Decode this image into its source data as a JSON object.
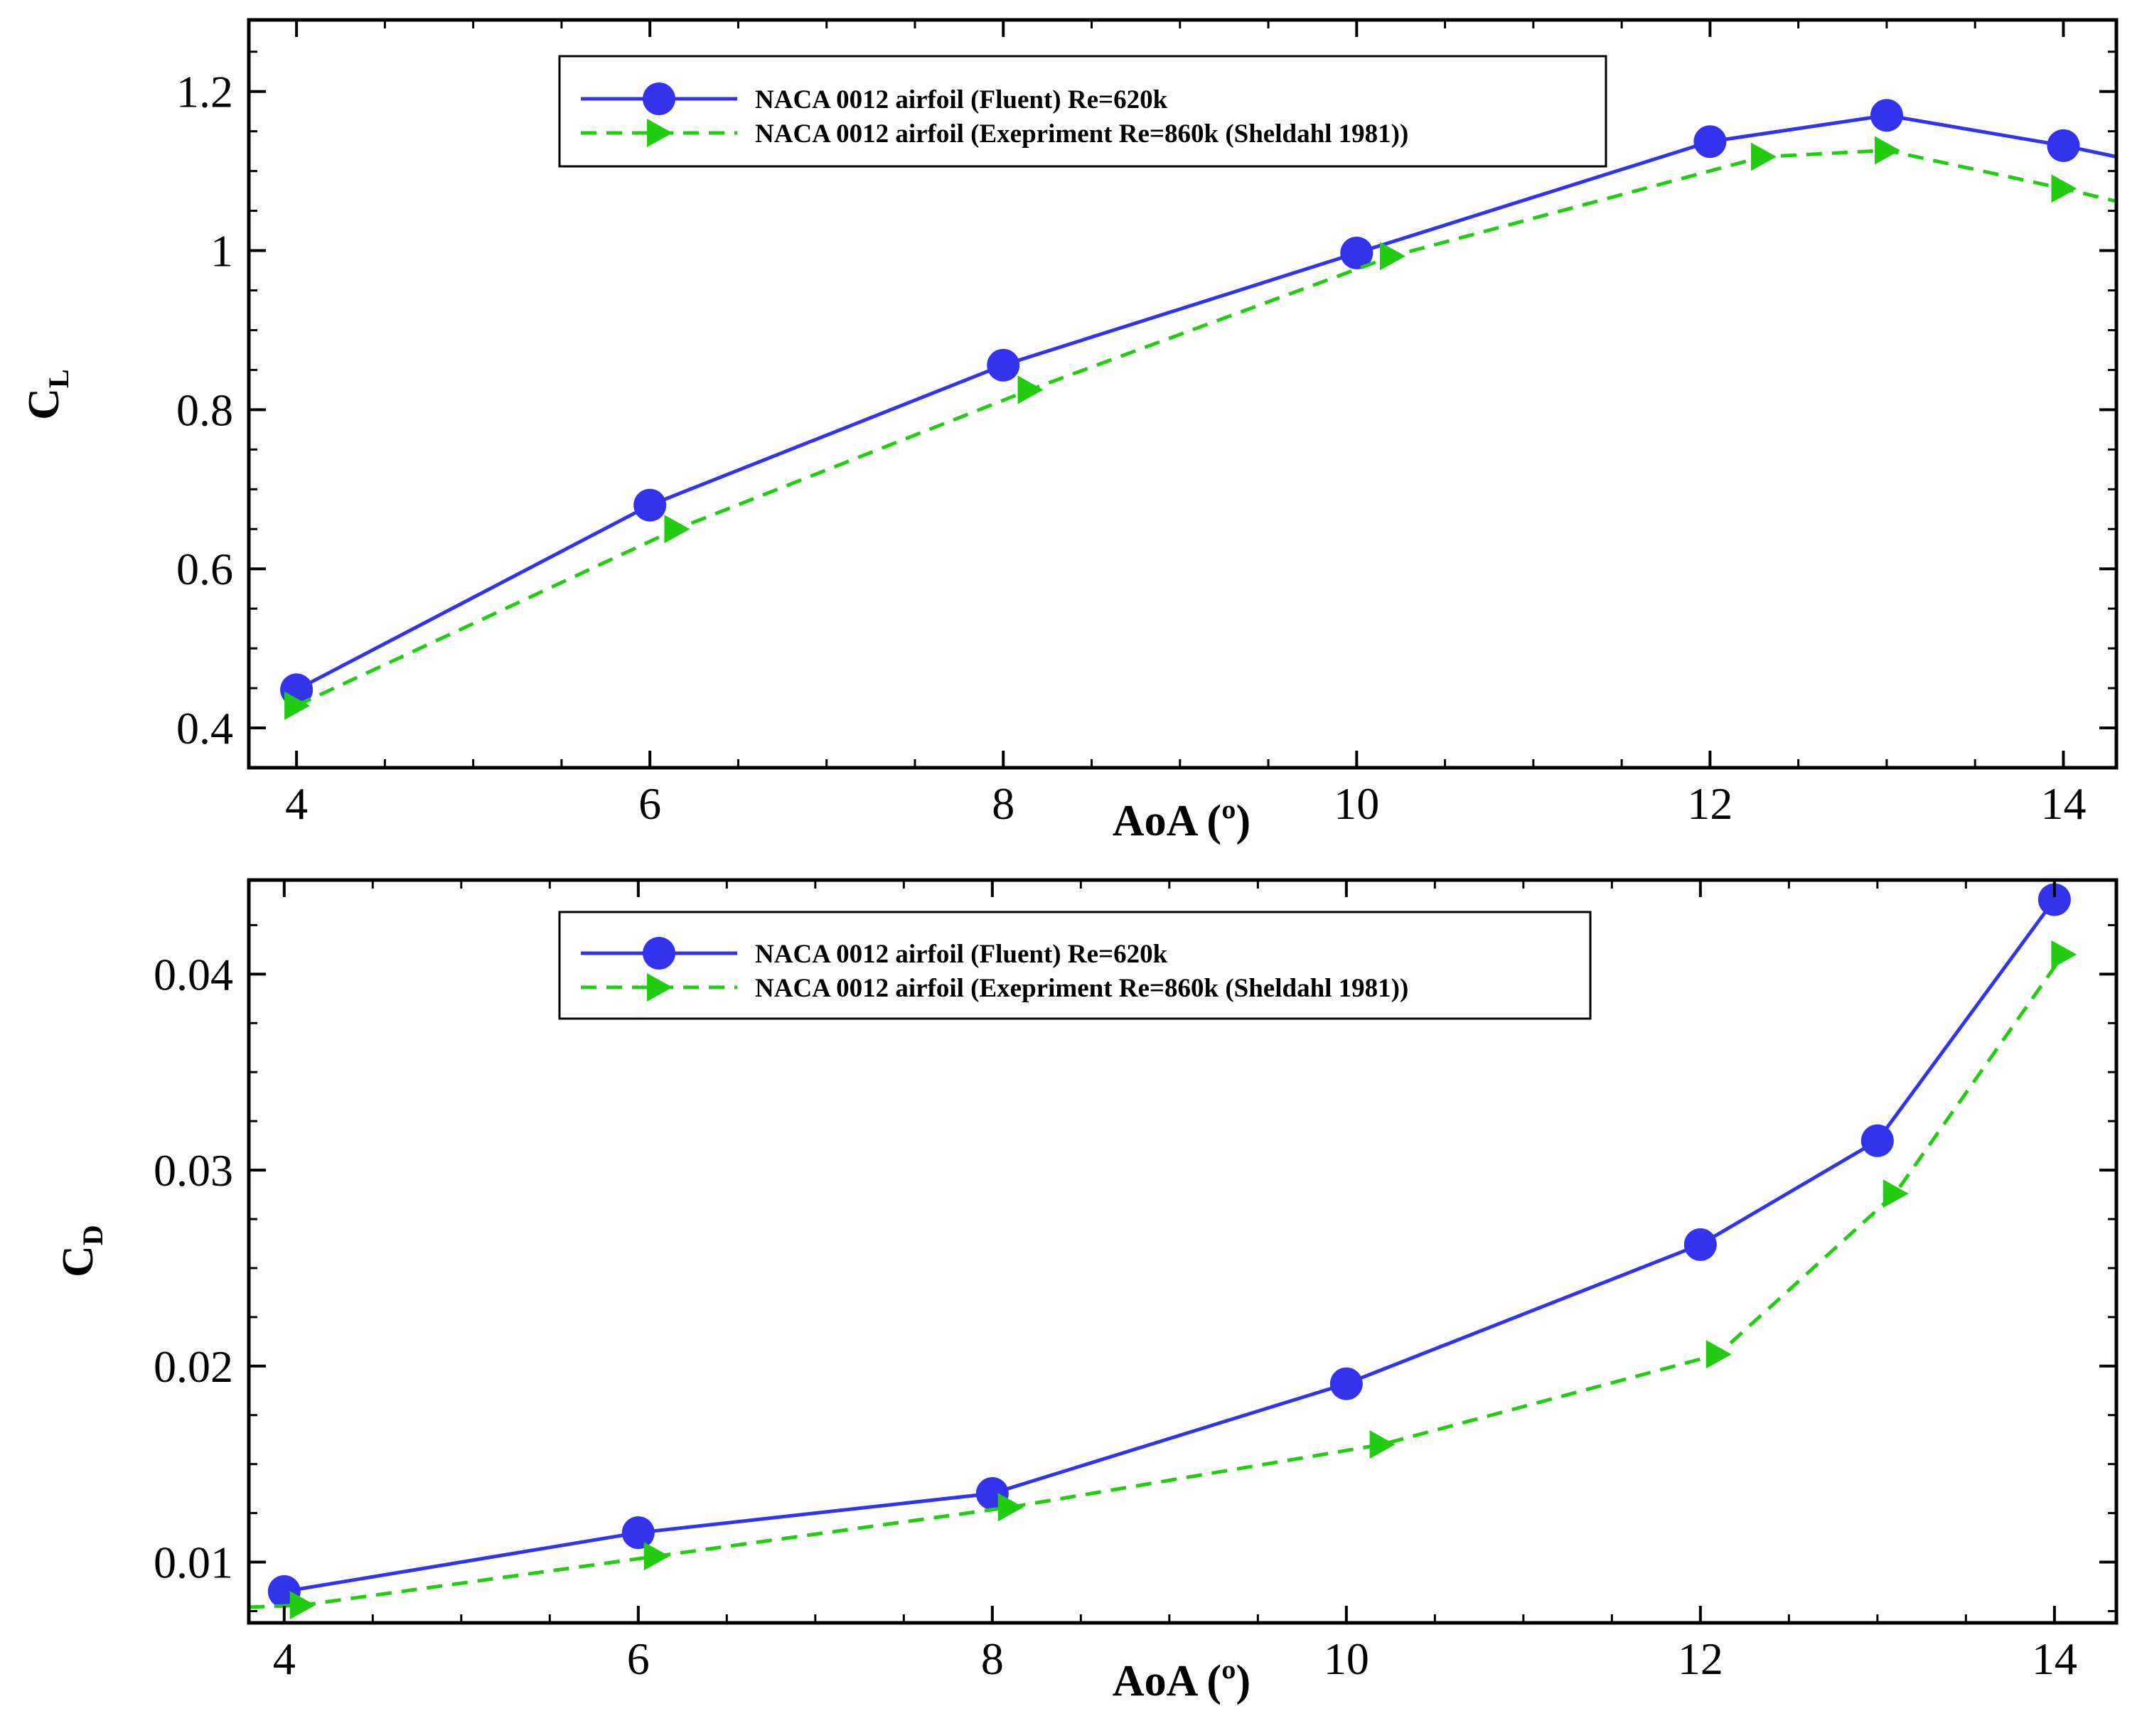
{
  "colors": {
    "fluent": "#3333ee",
    "experiment": "#22cc11",
    "axis": "#000000",
    "background": "#ffffff"
  },
  "chart_data": [
    {
      "type": "line",
      "id": "cl",
      "title": "",
      "xlabel": "AoA (º)",
      "ylabel": {
        "main": "C",
        "sub": "L"
      },
      "xlim": [
        3.73,
        14.3
      ],
      "ylim": [
        0.35,
        1.29
      ],
      "x_ticks": [
        4,
        6,
        8,
        10,
        12,
        14
      ],
      "x_tick_labels": [
        "4",
        "6",
        "8",
        "10",
        "12",
        "14"
      ],
      "x_minor_ticks": [
        4.5,
        5,
        5.5,
        6.5,
        7,
        7.5,
        8.5,
        9,
        9.5,
        10.5,
        11,
        11.5,
        12.5,
        13,
        13.5
      ],
      "y_ticks": [
        0.4,
        0.6,
        0.8,
        1.0,
        1.2
      ],
      "y_tick_labels": [
        "0.4",
        "0.6",
        "0.8",
        "1",
        "1.2"
      ],
      "y_minor_ticks": [
        0.45,
        0.5,
        0.55,
        0.65,
        0.7,
        0.75,
        0.85,
        0.9,
        0.95,
        1.05,
        1.1,
        1.15,
        1.25
      ],
      "grid": false,
      "legend_position": "top-center",
      "series": [
        {
          "name": "NACA 0012 airfoil (Fluent) Re=620k",
          "style": "solid",
          "marker": "circle",
          "x": [
            4,
            6,
            8,
            10,
            12,
            13,
            14
          ],
          "y": [
            0.448,
            0.68,
            0.856,
            0.997,
            1.137,
            1.17,
            1.132
          ],
          "extend_to": [
            14.3,
            1.118
          ]
        },
        {
          "name": "NACA 0012 airfoil (Exepriment Re=860k (Sheldahl 1981))",
          "style": "dashed",
          "marker": "triangle-right",
          "x": [
            4,
            6.15,
            8.15,
            10.2,
            12.3,
            13,
            14
          ],
          "y": [
            0.428,
            0.65,
            0.825,
            0.993,
            1.118,
            1.126,
            1.078
          ],
          "extend_to": [
            14.3,
            1.062
          ]
        }
      ]
    },
    {
      "type": "line",
      "id": "cd",
      "title": "",
      "xlabel": "AoA (º)",
      "ylabel": {
        "main": "C",
        "sub": "D"
      },
      "xlim": [
        3.8,
        14.35
      ],
      "ylim": [
        0.0069,
        0.0448
      ],
      "x_ticks": [
        4,
        6,
        8,
        10,
        12,
        14
      ],
      "x_tick_labels": [
        "4",
        "6",
        "8",
        "10",
        "12",
        "14"
      ],
      "x_minor_ticks": [
        4.5,
        5,
        5.5,
        6.5,
        7,
        7.5,
        8.5,
        9,
        9.5,
        10.5,
        11,
        11.5,
        12.5,
        13,
        13.5
      ],
      "y_ticks": [
        0.01,
        0.02,
        0.03,
        0.04
      ],
      "y_tick_labels": [
        "0.01",
        "0.02",
        "0.03",
        "0.04"
      ],
      "y_minor_ticks": [
        0.0075,
        0.0125,
        0.015,
        0.0175,
        0.0225,
        0.025,
        0.0275,
        0.0325,
        0.035,
        0.0375,
        0.0425
      ],
      "grid": false,
      "legend_position": "top-center",
      "series": [
        {
          "name": "NACA 0012 airfoil (Fluent) Re=620k",
          "style": "solid",
          "marker": "circle",
          "x": [
            4,
            6,
            8,
            10,
            12,
            13,
            14
          ],
          "y": [
            0.0085,
            0.0115,
            0.0135,
            0.0191,
            0.0262,
            0.0315,
            0.0438
          ]
        },
        {
          "name": "NACA 0012 airfoil (Exepriment Re=860k (Sheldahl 1981))",
          "style": "dashed",
          "marker": "triangle-right",
          "x": [
            4.1,
            6.1,
            8.1,
            10.2,
            12.1,
            13.1,
            14.05
          ],
          "y": [
            0.0078,
            0.0103,
            0.0128,
            0.016,
            0.0206,
            0.0288,
            0.041
          ],
          "extend_from": [
            3.8,
            0.0077
          ]
        }
      ]
    }
  ]
}
